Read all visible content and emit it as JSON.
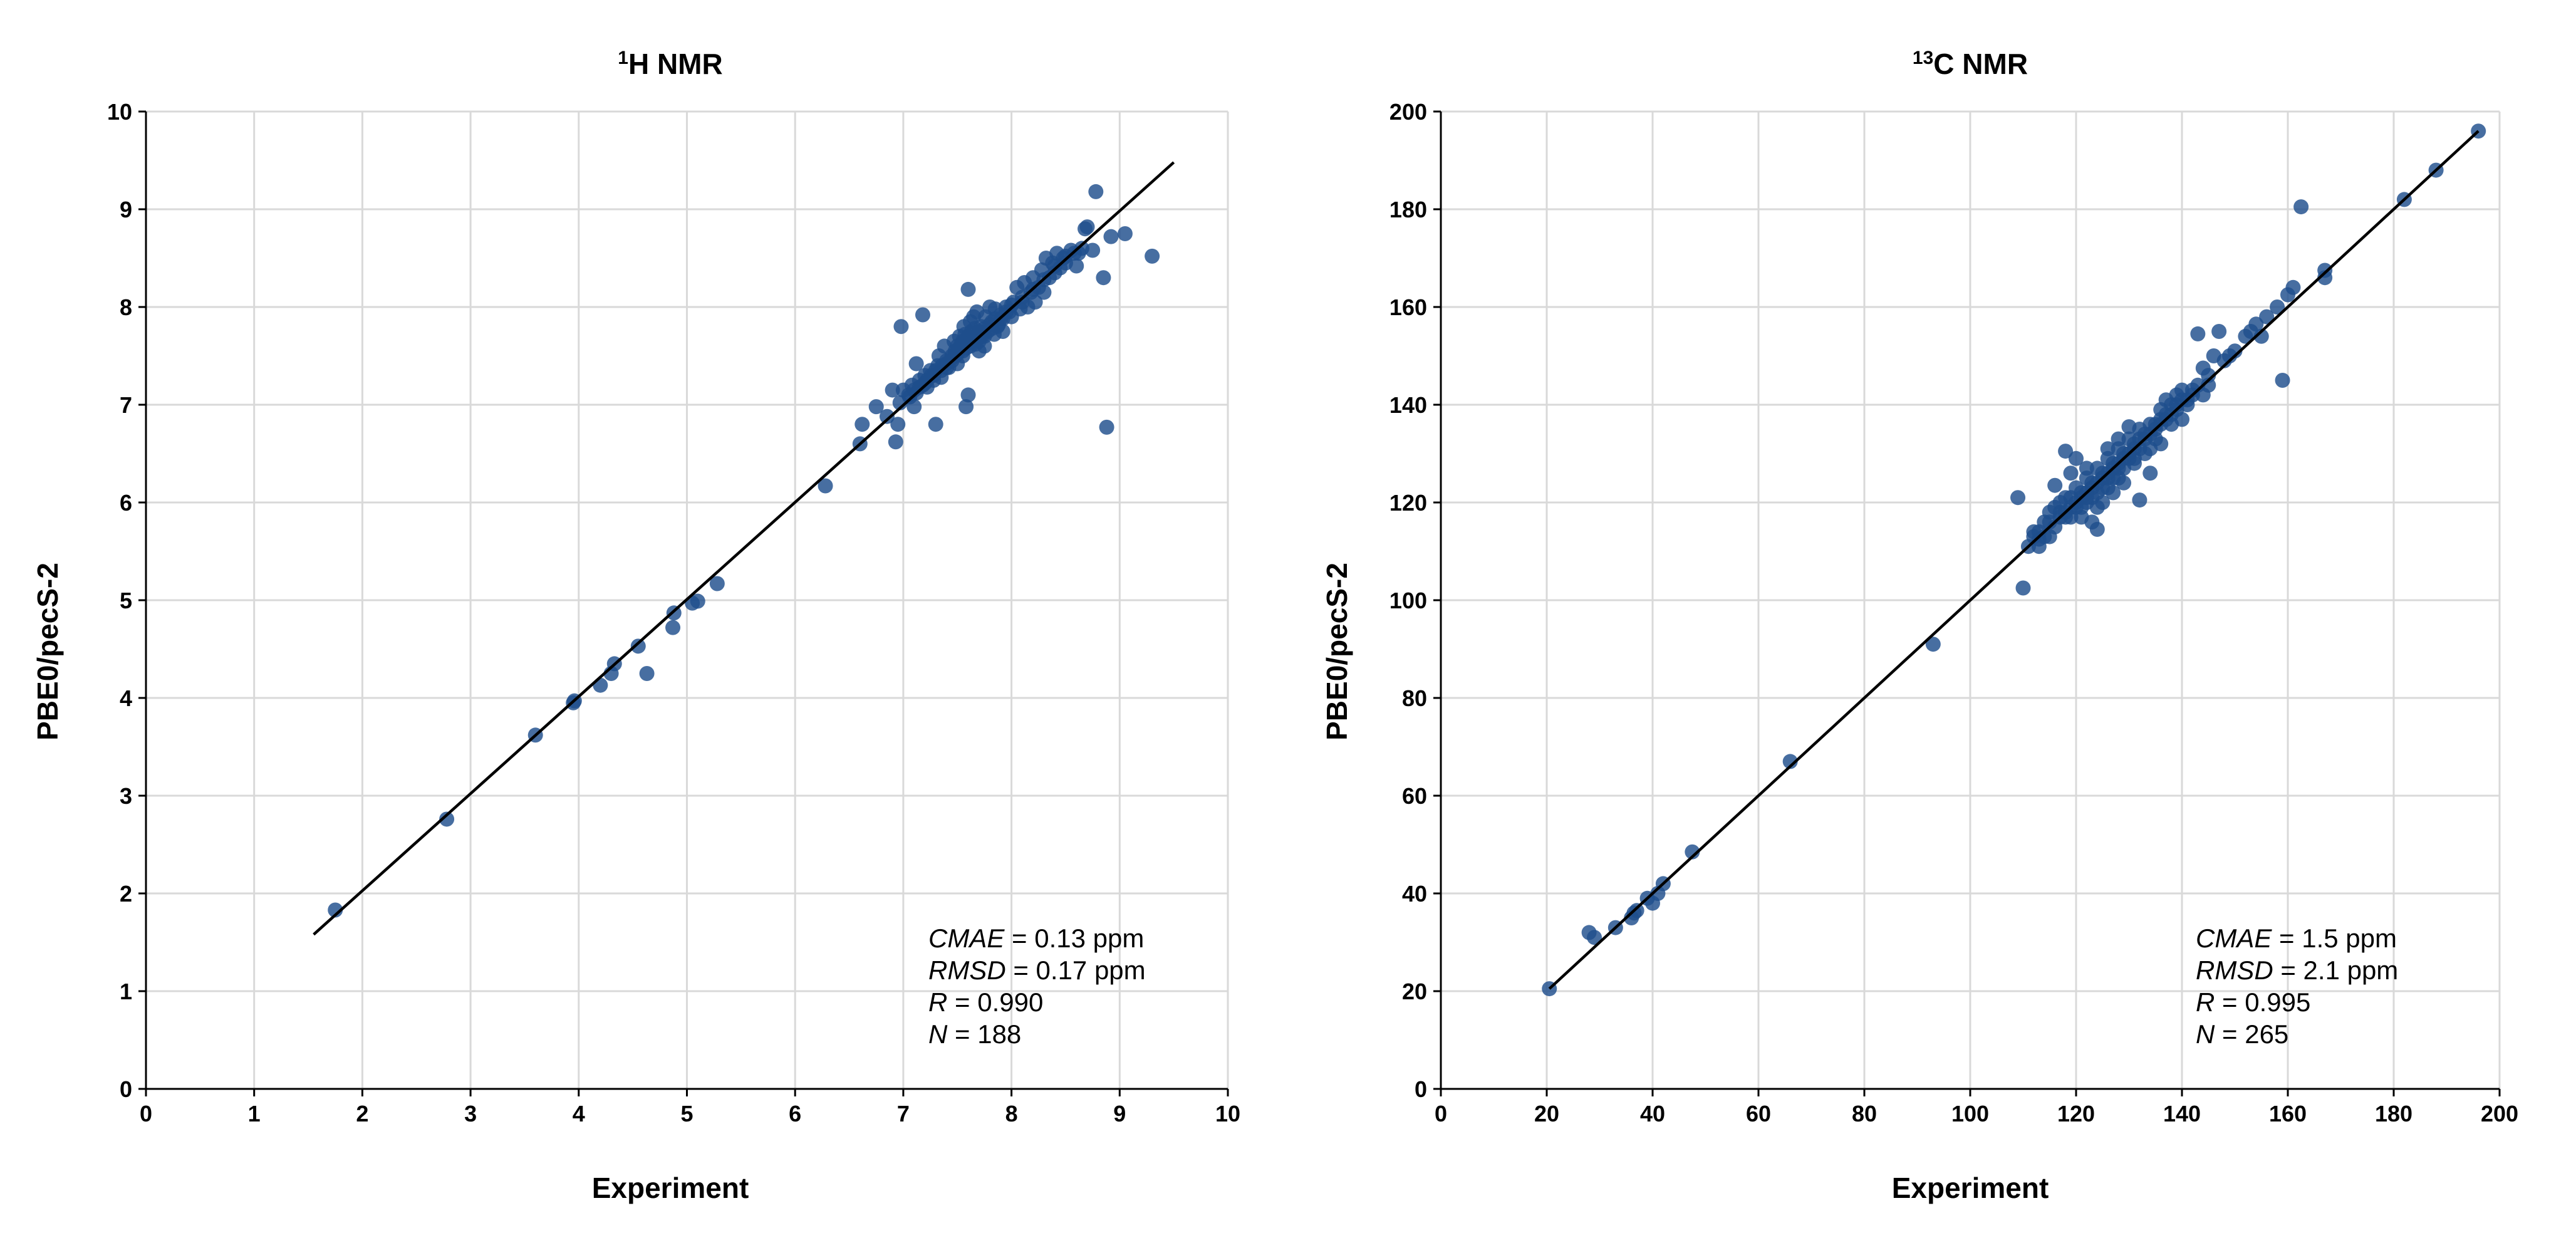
{
  "colors": {
    "points": "#1f4e8c",
    "grid": "#d9d9d9",
    "axis": "#000000",
    "fit_line": "#000000"
  },
  "chart_data": [
    {
      "type": "scatter",
      "title_sup": "1",
      "title_main": "H NMR",
      "xlabel": "Experiment",
      "ylabel": "PBE0/pecS-2",
      "xlim": [
        0,
        10
      ],
      "ylim": [
        0,
        10
      ],
      "xticks": [
        "0",
        "1",
        "2",
        "3",
        "4",
        "5",
        "6",
        "7",
        "8",
        "9",
        "10"
      ],
      "yticks": [
        "0",
        "1",
        "2",
        "3",
        "4",
        "5",
        "6",
        "7",
        "8",
        "9",
        "10"
      ],
      "grid": true,
      "fit_line": [
        [
          1.55,
          1.58
        ],
        [
          9.5,
          9.48
        ]
      ],
      "stats": {
        "cmae_label": "CMAE",
        "cmae_value": " = 0.13 ppm",
        "rmsd_label": "RMSD",
        "rmsd_value": " = 0.17 ppm",
        "r_label": "R",
        "r_value": " = 0.990",
        "n_label": "N",
        "n_value": " = 188"
      },
      "points": [
        [
          1.75,
          1.83
        ],
        [
          2.78,
          2.76
        ],
        [
          3.6,
          3.62
        ],
        [
          3.95,
          3.95
        ],
        [
          3.96,
          3.97
        ],
        [
          4.2,
          4.13
        ],
        [
          4.3,
          4.25
        ],
        [
          4.33,
          4.35
        ],
        [
          4.55,
          4.53
        ],
        [
          4.63,
          4.25
        ],
        [
          4.87,
          4.72
        ],
        [
          4.88,
          4.87
        ],
        [
          5.05,
          4.97
        ],
        [
          5.1,
          4.99
        ],
        [
          5.28,
          5.17
        ],
        [
          6.28,
          6.17
        ],
        [
          6.6,
          6.6
        ],
        [
          6.62,
          6.8
        ],
        [
          6.75,
          6.98
        ],
        [
          6.85,
          6.88
        ],
        [
          6.9,
          7.15
        ],
        [
          6.93,
          6.62
        ],
        [
          6.95,
          6.8
        ],
        [
          6.97,
          7.02
        ],
        [
          6.98,
          7.8
        ],
        [
          7.0,
          7.15
        ],
        [
          7.05,
          7.1
        ],
        [
          7.08,
          7.2
        ],
        [
          7.1,
          6.98
        ],
        [
          7.12,
          7.42
        ],
        [
          7.15,
          7.25
        ],
        [
          7.18,
          7.92
        ],
        [
          7.2,
          7.3
        ],
        [
          7.22,
          7.18
        ],
        [
          7.25,
          7.35
        ],
        [
          7.28,
          7.25
        ],
        [
          7.3,
          6.8
        ],
        [
          7.32,
          7.4
        ],
        [
          7.33,
          7.5
        ],
        [
          7.35,
          7.28
        ],
        [
          7.38,
          7.6
        ],
        [
          7.4,
          7.45
        ],
        [
          7.42,
          7.38
        ],
        [
          7.45,
          7.5
        ],
        [
          7.47,
          7.65
        ],
        [
          7.48,
          7.55
        ],
        [
          7.5,
          7.42
        ],
        [
          7.52,
          7.7
        ],
        [
          7.53,
          7.6
        ],
        [
          7.55,
          7.5
        ],
        [
          7.56,
          7.8
        ],
        [
          7.57,
          7.72
        ],
        [
          7.58,
          6.98
        ],
        [
          7.6,
          7.1
        ],
        [
          7.6,
          8.18
        ],
        [
          7.62,
          7.85
        ],
        [
          7.63,
          7.75
        ],
        [
          7.64,
          7.65
        ],
        [
          7.65,
          7.9
        ],
        [
          7.66,
          7.78
        ],
        [
          7.67,
          7.62
        ],
        [
          7.68,
          7.95
        ],
        [
          7.7,
          7.55
        ],
        [
          7.72,
          7.8
        ],
        [
          7.73,
          7.7
        ],
        [
          7.75,
          7.6
        ],
        [
          7.76,
          7.9
        ],
        [
          7.78,
          7.75
        ],
        [
          7.8,
          8.0
        ],
        [
          7.82,
          7.85
        ],
        [
          7.84,
          7.72
        ],
        [
          7.85,
          7.98
        ],
        [
          7.87,
          7.8
        ],
        [
          7.9,
          7.88
        ],
        [
          7.92,
          7.75
        ],
        [
          7.95,
          8.0
        ],
        [
          7.98,
          7.95
        ],
        [
          8.0,
          7.9
        ],
        [
          8.02,
          8.05
        ],
        [
          8.05,
          8.2
        ],
        [
          8.08,
          7.98
        ],
        [
          8.1,
          8.1
        ],
        [
          8.12,
          8.25
        ],
        [
          8.15,
          8.0
        ],
        [
          8.18,
          8.15
        ],
        [
          8.2,
          8.3
        ],
        [
          8.22,
          8.05
        ],
        [
          8.25,
          8.2
        ],
        [
          8.28,
          8.38
        ],
        [
          8.3,
          8.15
        ],
        [
          8.32,
          8.5
        ],
        [
          8.35,
          8.3
        ],
        [
          8.38,
          8.45
        ],
        [
          8.4,
          8.35
        ],
        [
          8.42,
          8.55
        ],
        [
          8.45,
          8.4
        ],
        [
          8.48,
          8.5
        ],
        [
          8.5,
          8.45
        ],
        [
          8.55,
          8.58
        ],
        [
          8.6,
          8.42
        ],
        [
          8.62,
          8.55
        ],
        [
          8.68,
          8.8
        ],
        [
          8.7,
          8.82
        ],
        [
          8.75,
          8.58
        ],
        [
          8.78,
          9.18
        ],
        [
          8.85,
          8.3
        ],
        [
          8.88,
          6.77
        ],
        [
          8.92,
          8.72
        ],
        [
          9.05,
          8.75
        ],
        [
          9.3,
          8.52
        ],
        [
          7.5,
          7.6
        ],
        [
          7.55,
          7.65
        ],
        [
          7.6,
          7.7
        ],
        [
          7.62,
          7.68
        ],
        [
          7.65,
          7.72
        ],
        [
          7.7,
          7.75
        ],
        [
          7.58,
          7.62
        ],
        [
          7.52,
          7.58
        ],
        [
          7.48,
          7.5
        ],
        [
          7.45,
          7.48
        ],
        [
          7.4,
          7.42
        ],
        [
          7.36,
          7.4
        ],
        [
          7.3,
          7.35
        ],
        [
          7.26,
          7.3
        ],
        [
          7.2,
          7.22
        ],
        [
          7.15,
          7.18
        ],
        [
          7.1,
          7.15
        ],
        [
          7.75,
          7.78
        ],
        [
          7.8,
          7.82
        ],
        [
          7.85,
          7.88
        ],
        [
          7.9,
          7.92
        ],
        [
          7.95,
          7.95
        ],
        [
          8.0,
          8.02
        ],
        [
          7.68,
          7.7
        ],
        [
          7.72,
          7.72
        ],
        [
          7.55,
          7.55
        ],
        [
          7.62,
          7.6
        ],
        [
          7.58,
          7.58
        ],
        [
          7.65,
          7.65
        ],
        [
          7.5,
          7.52
        ],
        [
          7.45,
          7.45
        ],
        [
          7.4,
          7.38
        ],
        [
          7.35,
          7.35
        ],
        [
          7.28,
          7.3
        ],
        [
          7.22,
          7.25
        ],
        [
          7.18,
          7.2
        ],
        [
          7.12,
          7.12
        ],
        [
          7.06,
          7.08
        ],
        [
          8.1,
          8.05
        ],
        [
          8.2,
          8.18
        ],
        [
          8.3,
          8.28
        ],
        [
          8.4,
          8.42
        ],
        [
          8.5,
          8.52
        ],
        [
          8.58,
          8.55
        ],
        [
          8.65,
          8.6
        ],
        [
          7.7,
          7.65
        ],
        [
          7.75,
          7.7
        ],
        [
          7.82,
          7.78
        ],
        [
          7.88,
          7.82
        ],
        [
          7.92,
          7.88
        ]
      ]
    },
    {
      "type": "scatter",
      "title_sup": "13",
      "title_main": "C NMR",
      "xlabel": "Experiment",
      "ylabel": "PBE0/pecS-2",
      "xlim": [
        0,
        200
      ],
      "ylim": [
        0,
        200
      ],
      "xticks": [
        "0",
        "20",
        "40",
        "60",
        "80",
        "100",
        "120",
        "140",
        "160",
        "180",
        "200"
      ],
      "yticks": [
        "0",
        "20",
        "40",
        "60",
        "80",
        "100",
        "120",
        "140",
        "160",
        "180",
        "200"
      ],
      "grid": true,
      "fit_line": [
        [
          20.5,
          20.5
        ],
        [
          196,
          196
        ]
      ],
      "stats": {
        "cmae_label": "CMAE",
        "cmae_value": " = 1.5 ppm",
        "rmsd_label": "RMSD",
        "rmsd_value": " = 2.1 ppm",
        "r_label": "R",
        "r_value": " = 0.995",
        "n_label": "N",
        "n_value": " = 265"
      },
      "points": [
        [
          20.5,
          20.5
        ],
        [
          28,
          32
        ],
        [
          29,
          31
        ],
        [
          33,
          33
        ],
        [
          36,
          35
        ],
        [
          36.5,
          36
        ],
        [
          37,
          36.5
        ],
        [
          39,
          39
        ],
        [
          40,
          38
        ],
        [
          41,
          40
        ],
        [
          42,
          42
        ],
        [
          47.5,
          48.5
        ],
        [
          66,
          67
        ],
        [
          93,
          91
        ],
        [
          110,
          102.5
        ],
        [
          109,
          121
        ],
        [
          111,
          111
        ],
        [
          112,
          114
        ],
        [
          113,
          112.5
        ],
        [
          114,
          116
        ],
        [
          115,
          113
        ],
        [
          116,
          119
        ],
        [
          116,
          123.5
        ],
        [
          117,
          118
        ],
        [
          118,
          117
        ],
        [
          118,
          130.5
        ],
        [
          119,
          121
        ],
        [
          119,
          126
        ],
        [
          120,
          119
        ],
        [
          120,
          129
        ],
        [
          121,
          122
        ],
        [
          121,
          117
        ],
        [
          122,
          121
        ],
        [
          122,
          125
        ],
        [
          123,
          124
        ],
        [
          123,
          116
        ],
        [
          124,
          122
        ],
        [
          124,
          114.5
        ],
        [
          125,
          126
        ],
        [
          125,
          120
        ],
        [
          126,
          125
        ],
        [
          126,
          131
        ],
        [
          127,
          128
        ],
        [
          127,
          122
        ],
        [
          128,
          127
        ],
        [
          128,
          133
        ],
        [
          129,
          130
        ],
        [
          129,
          124
        ],
        [
          130,
          129
        ],
        [
          130,
          135.5
        ],
        [
          131,
          131
        ],
        [
          131,
          128
        ],
        [
          132,
          133
        ],
        [
          132,
          120.5
        ],
        [
          133,
          134
        ],
        [
          133,
          130
        ],
        [
          134,
          126
        ],
        [
          134,
          136
        ],
        [
          135,
          135
        ],
        [
          135,
          133
        ],
        [
          136,
          137
        ],
        [
          136,
          132
        ],
        [
          137,
          138
        ],
        [
          137,
          141
        ],
        [
          138,
          140
        ],
        [
          138,
          136
        ],
        [
          139,
          139
        ],
        [
          139,
          142
        ],
        [
          140,
          141
        ],
        [
          140,
          137
        ],
        [
          141,
          140
        ],
        [
          142,
          143
        ],
        [
          143,
          144
        ],
        [
          143,
          154.5
        ],
        [
          144,
          142
        ],
        [
          144,
          147.5
        ],
        [
          145,
          146
        ],
        [
          146,
          150
        ],
        [
          147,
          155
        ],
        [
          148,
          149
        ],
        [
          152,
          154
        ],
        [
          153,
          155
        ],
        [
          154,
          156.5
        ],
        [
          156,
          158
        ],
        [
          158,
          160
        ],
        [
          159,
          145
        ],
        [
          160,
          162.5
        ],
        [
          161,
          164
        ],
        [
          162.5,
          180.5
        ],
        [
          167,
          166
        ],
        [
          167,
          167.5
        ],
        [
          182,
          182
        ],
        [
          188,
          188
        ],
        [
          196,
          196
        ],
        [
          112,
          113
        ],
        [
          113,
          114
        ],
        [
          114,
          113
        ],
        [
          115,
          116
        ],
        [
          116,
          115
        ],
        [
          117,
          117
        ],
        [
          118,
          118
        ],
        [
          119,
          119
        ],
        [
          120,
          120
        ],
        [
          121,
          121
        ],
        [
          122,
          122
        ],
        [
          123,
          123
        ],
        [
          124,
          124
        ],
        [
          125,
          125
        ],
        [
          126,
          126
        ],
        [
          127,
          127
        ],
        [
          128,
          128
        ],
        [
          129,
          129
        ],
        [
          130,
          130
        ],
        [
          131,
          132
        ],
        [
          132,
          131
        ],
        [
          133,
          133
        ],
        [
          134,
          134
        ],
        [
          135,
          136
        ],
        [
          136,
          136
        ],
        [
          137,
          137
        ],
        [
          138,
          138
        ],
        [
          139,
          140
        ],
        [
          141,
          141
        ],
        [
          142,
          142
        ],
        [
          119,
          117
        ],
        [
          121,
          119
        ],
        [
          123,
          121
        ],
        [
          125,
          123
        ],
        [
          127,
          125
        ],
        [
          129,
          127
        ],
        [
          131,
          129
        ],
        [
          124,
          127
        ],
        [
          126,
          129
        ],
        [
          128,
          131
        ],
        [
          130,
          133
        ],
        [
          117,
          120
        ],
        [
          115,
          118
        ],
        [
          113,
          111
        ],
        [
          118,
          121
        ],
        [
          120,
          123
        ],
        [
          122,
          120
        ],
        [
          126,
          123
        ],
        [
          128,
          125
        ],
        [
          132,
          135
        ],
        [
          134,
          131
        ],
        [
          136,
          139
        ],
        [
          140,
          143
        ],
        [
          145,
          144
        ],
        [
          150,
          151
        ],
        [
          155,
          154
        ],
        [
          149,
          150
        ],
        [
          124,
          119
        ],
        [
          122,
          127
        ]
      ]
    }
  ]
}
